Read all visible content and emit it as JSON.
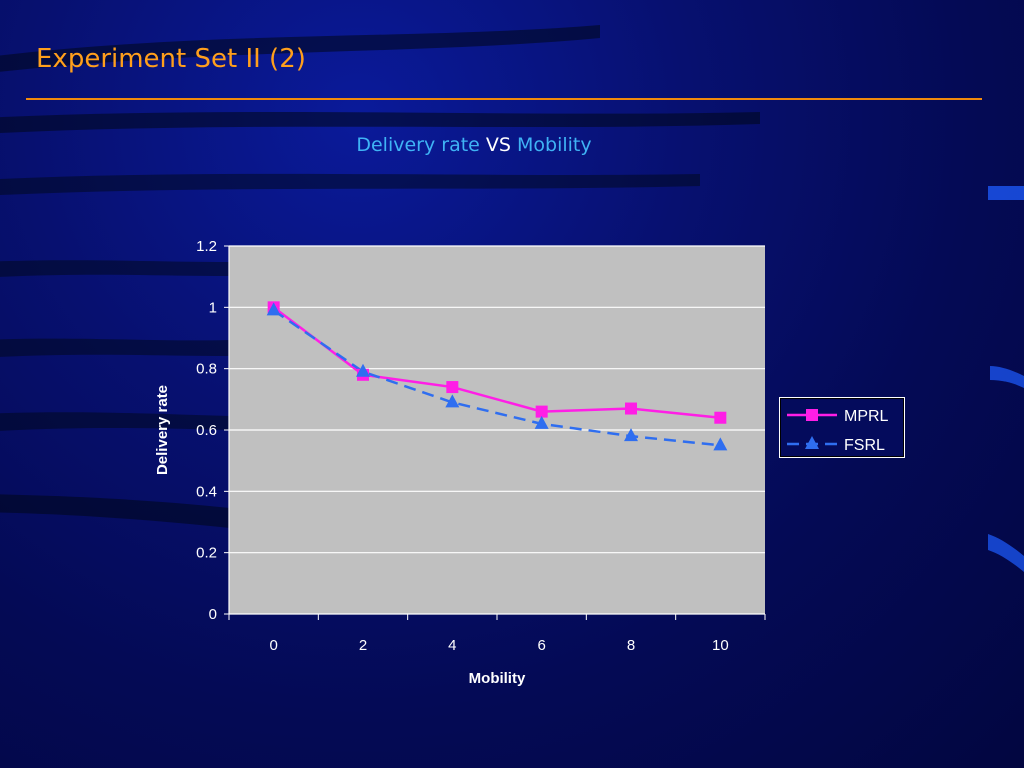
{
  "slide": {
    "title": "Experiment Set II (2)"
  },
  "heading": {
    "left": "Delivery rate",
    "middle": "VS",
    "right": "Mobility"
  },
  "colors": {
    "title": "#ff9f1c",
    "rule": "#f08a0c",
    "heading_accent": "#3fb3f5",
    "plot_area": "#c0c0c0",
    "mprl": "#ff1ee6",
    "fsrl": "#2f6ef0"
  },
  "chart_data": {
    "type": "line",
    "title": "",
    "xlabel": "Mobility",
    "ylabel": "Delivery rate",
    "categories": [
      "0",
      "2",
      "4",
      "6",
      "8",
      "10"
    ],
    "ylim": [
      0,
      1.2
    ],
    "yticks": [
      "0",
      "0.2",
      "0.4",
      "0.6",
      "0.8",
      "1",
      "1.2"
    ],
    "grid": "horizontal",
    "legend_position": "right",
    "series": [
      {
        "name": "MPRL",
        "values": [
          1.0,
          0.78,
          0.74,
          0.66,
          0.67,
          0.64
        ],
        "color": "#ff1ee6",
        "marker": "square",
        "line": "solid"
      },
      {
        "name": "FSRL",
        "values": [
          0.99,
          0.79,
          0.69,
          0.62,
          0.58,
          0.55
        ],
        "color": "#2f6ef0",
        "marker": "triangle",
        "line": "dashed"
      }
    ]
  }
}
